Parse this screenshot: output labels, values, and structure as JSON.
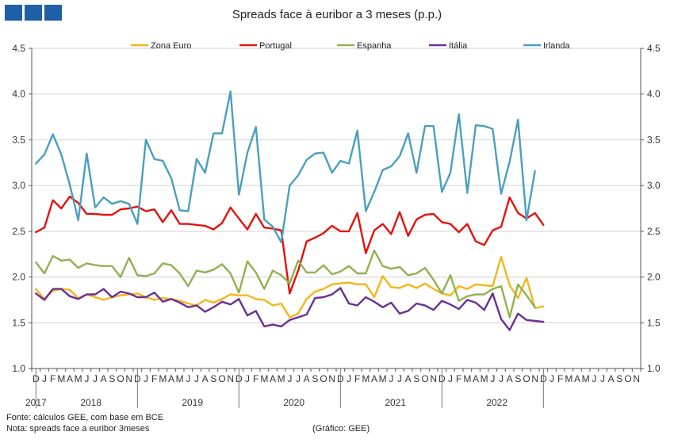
{
  "chart_data": {
    "type": "line",
    "title": "Spreads face à euribor a 3 meses (p.p.)",
    "ylim": [
      1.0,
      4.5
    ],
    "yticks": [
      "1.0",
      "1.5",
      "2.0",
      "2.5",
      "3.0",
      "3.5",
      "4.0",
      "4.5"
    ],
    "month_labels": [
      "D",
      "J",
      "F",
      "M",
      "A",
      "M",
      "J",
      "J",
      "A",
      "S",
      "O",
      "N",
      "D",
      "J",
      "F",
      "M",
      "A",
      "M",
      "J",
      "J",
      "A",
      "S",
      "O",
      "N",
      "D",
      "J",
      "F",
      "M",
      "A",
      "M",
      "J",
      "J",
      "A",
      "S",
      "O",
      "N",
      "D",
      "J",
      "F",
      "M",
      "A",
      "M",
      "J",
      "J",
      "A",
      "S",
      "O",
      "N",
      "D",
      "J",
      "F",
      "M",
      "A",
      "M",
      "J",
      "J",
      "A",
      "S",
      "O",
      "N",
      "D",
      "J",
      "F",
      "M",
      "A",
      "M",
      "J",
      "J",
      "A",
      "S",
      "O",
      "N"
    ],
    "year_labels": [
      {
        "label": "2017",
        "index": 0
      },
      {
        "label": "2018",
        "index": 6.5
      },
      {
        "label": "2019",
        "index": 18.5
      },
      {
        "label": "2020",
        "index": 30.5
      },
      {
        "label": "2021",
        "index": 42.5
      },
      {
        "label": "2022",
        "index": 54.5
      }
    ],
    "year_separators": [
      0.5,
      12.5,
      24.5,
      36.5,
      48.5,
      60.5
    ],
    "series": [
      {
        "name": "Zona Euro",
        "color": "#f2b619",
        "values": [
          1.87,
          1.76,
          1.85,
          1.87,
          1.86,
          1.77,
          1.81,
          1.78,
          1.75,
          1.78,
          1.8,
          1.81,
          1.82,
          1.78,
          1.75,
          1.77,
          1.76,
          1.74,
          1.71,
          1.69,
          1.75,
          1.72,
          1.76,
          1.81,
          1.8,
          1.8,
          1.76,
          1.75,
          1.69,
          1.71,
          1.56,
          1.6,
          1.76,
          1.84,
          1.87,
          1.92,
          1.93,
          1.94,
          1.92,
          1.92,
          1.78,
          2.01,
          1.89,
          1.88,
          1.92,
          1.88,
          1.93,
          1.87,
          1.82,
          1.8,
          1.9,
          1.87,
          1.92,
          1.91,
          1.9,
          2.22,
          1.91,
          1.77,
          1.99,
          1.66,
          1.68
        ]
      },
      {
        "name": "Portugal",
        "color": "#e3120b",
        "values": [
          2.49,
          2.54,
          2.84,
          2.75,
          2.88,
          2.81,
          2.69,
          2.69,
          2.68,
          2.68,
          2.74,
          2.75,
          2.77,
          2.72,
          2.74,
          2.6,
          2.73,
          2.58,
          2.58,
          2.57,
          2.56,
          2.52,
          2.59,
          2.76,
          2.64,
          2.52,
          2.69,
          2.54,
          2.53,
          2.51,
          1.82,
          2.07,
          2.39,
          2.43,
          2.48,
          2.56,
          2.5,
          2.5,
          2.7,
          2.26,
          2.51,
          2.58,
          2.47,
          2.71,
          2.45,
          2.63,
          2.68,
          2.69,
          2.6,
          2.58,
          2.49,
          2.58,
          2.39,
          2.35,
          2.51,
          2.55,
          2.87,
          2.7,
          2.64,
          2.7,
          2.57
        ]
      },
      {
        "name": "Espanha",
        "color": "#92b050",
        "values": [
          2.16,
          2.04,
          2.23,
          2.18,
          2.19,
          2.1,
          2.15,
          2.13,
          2.12,
          2.12,
          2.0,
          2.21,
          2.02,
          2.01,
          2.04,
          2.15,
          2.13,
          2.04,
          1.9,
          2.07,
          2.05,
          2.08,
          2.14,
          2.04,
          1.83,
          2.17,
          2.05,
          1.87,
          2.07,
          2.02,
          1.93,
          2.18,
          2.05,
          2.05,
          2.13,
          2.03,
          2.06,
          2.12,
          2.04,
          2.04,
          2.29,
          2.12,
          2.09,
          2.11,
          2.02,
          2.04,
          2.1,
          1.97,
          1.82,
          2.02,
          1.74,
          1.79,
          1.81,
          1.81,
          1.87,
          1.9,
          1.56,
          1.92,
          1.8,
          1.67
        ]
      },
      {
        "name": "Itália",
        "color": "#6a3093",
        "values": [
          1.82,
          1.75,
          1.87,
          1.87,
          1.79,
          1.76,
          1.81,
          1.81,
          1.87,
          1.78,
          1.84,
          1.82,
          1.78,
          1.78,
          1.83,
          1.73,
          1.76,
          1.72,
          1.67,
          1.69,
          1.62,
          1.67,
          1.73,
          1.7,
          1.76,
          1.58,
          1.63,
          1.46,
          1.48,
          1.46,
          1.53,
          1.56,
          1.59,
          1.77,
          1.78,
          1.81,
          1.88,
          1.71,
          1.69,
          1.78,
          1.73,
          1.67,
          1.72,
          1.6,
          1.63,
          1.71,
          1.69,
          1.64,
          1.74,
          1.7,
          1.65,
          1.75,
          1.72,
          1.64,
          1.82,
          1.54,
          1.42,
          1.6,
          1.53,
          1.52,
          1.51
        ]
      },
      {
        "name": "Irlanda",
        "color": "#4a9fbf",
        "values": [
          3.24,
          3.34,
          3.56,
          3.34,
          3.01,
          2.62,
          3.35,
          2.76,
          2.87,
          2.8,
          2.83,
          2.8,
          2.58,
          3.5,
          3.29,
          3.27,
          3.08,
          2.73,
          2.72,
          3.29,
          3.14,
          3.57,
          3.57,
          4.03,
          2.9,
          3.36,
          3.64,
          2.63,
          2.55,
          2.38,
          3.0,
          3.11,
          3.28,
          3.35,
          3.36,
          3.14,
          3.27,
          3.24,
          3.6,
          2.72,
          2.93,
          3.17,
          3.21,
          3.32,
          3.57,
          3.14,
          3.65,
          3.65,
          2.93,
          3.14,
          3.78,
          2.92,
          3.66,
          3.65,
          3.62,
          2.91,
          3.26,
          3.72,
          2.62,
          3.16
        ]
      }
    ]
  },
  "footer": {
    "source": "Fonte: cálculos GEE, com base em BCE",
    "note": "Nota: spreads face a euribor 3meses",
    "credit": "(Gráfico: GEE)"
  }
}
